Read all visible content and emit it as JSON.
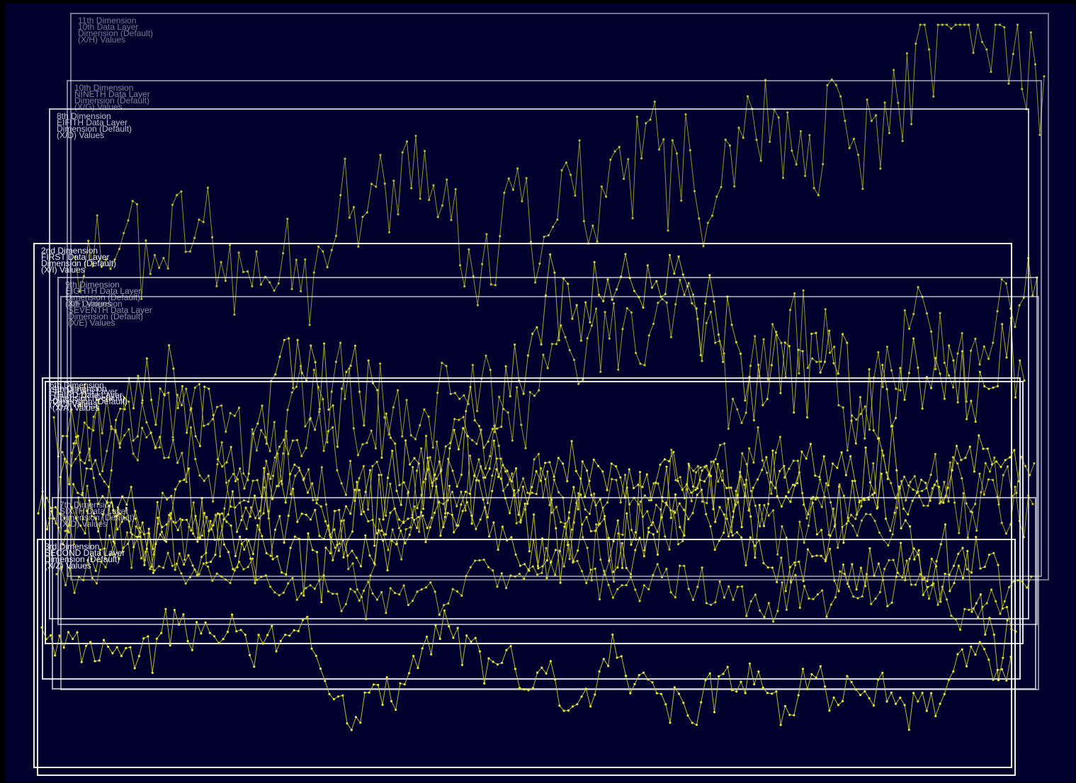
{
  "chart_data": {
    "type": "line",
    "title": "",
    "xlabel": "",
    "ylabel": "",
    "colors": {
      "background": "#01012e",
      "series": "#c8c832",
      "points": "#e8e83c",
      "frame": "#ffffff"
    },
    "layers": [
      {
        "lines": [
          "11th Dimension",
          "10th Data Layer",
          "Dimension (Default)",
          "(X/H) Values"
        ],
        "seed": 11,
        "start": 0.55,
        "end": 0.95,
        "drift": 0.55
      },
      {
        "lines": [
          "10th Dimension",
          "NINETH Data Layer",
          "Dimension (Default)",
          "(X/G) Values"
        ],
        "seed": 10,
        "start": 0.3,
        "end": 0.55,
        "drift": 0.5
      },
      {
        "lines": [
          "8th Dimension",
          "EIFITH Data Layer",
          "Dimension (Default)",
          "(X/D) Values"
        ],
        "seed": 8,
        "start": 0.35,
        "end": 0.6,
        "drift": 0.45
      },
      {
        "lines": [
          "2nd Dimension",
          "FIRST Data Layer",
          "Dimension (Default)",
          "(X/I) Values"
        ],
        "seed": 2,
        "start": 0.55,
        "end": 0.4,
        "drift": 0.3
      },
      {
        "lines": [
          "9th Dimension",
          "EIGHTH Data Layer",
          "Dimension (Default)",
          "(X/F) Values"
        ],
        "seed": 9,
        "start": 0.5,
        "end": 0.25,
        "drift": 0.35
      },
      {
        "lines": [
          "8th Dimension",
          "SEVENTH Data Layer",
          "Dimension (Default)",
          "(X/E) Values"
        ],
        "seed": 7,
        "start": 0.45,
        "end": 0.55,
        "drift": 0.3
      },
      {
        "lines": [
          "6th Dimension",
          "FIFTH Data Layer",
          "Dimension (Default)",
          "(X/C) Values"
        ],
        "seed": 6,
        "start": 0.6,
        "end": 0.35,
        "drift": 0.35
      },
      {
        "lines": [
          "4th Dimension",
          "THIRD Data Layer",
          "Dimension (Default)",
          "(X/A) Values"
        ],
        "seed": 4,
        "start": 0.5,
        "end": 0.6,
        "drift": 0.35
      },
      {
        "lines": [
          "7th Dimension",
          "SIXTH Data Layer",
          "Dimension (Default)",
          "(X/D) Values"
        ],
        "seed": 5,
        "start": 0.55,
        "end": 0.45,
        "drift": 0.3
      },
      {
        "lines": [
          "3rd Dimension",
          "SECOND Data Layer",
          "Dimension (Default)",
          "(X/Z) Values"
        ],
        "seed": 3,
        "start": 0.6,
        "end": 0.3,
        "drift": 0.4
      }
    ]
  }
}
